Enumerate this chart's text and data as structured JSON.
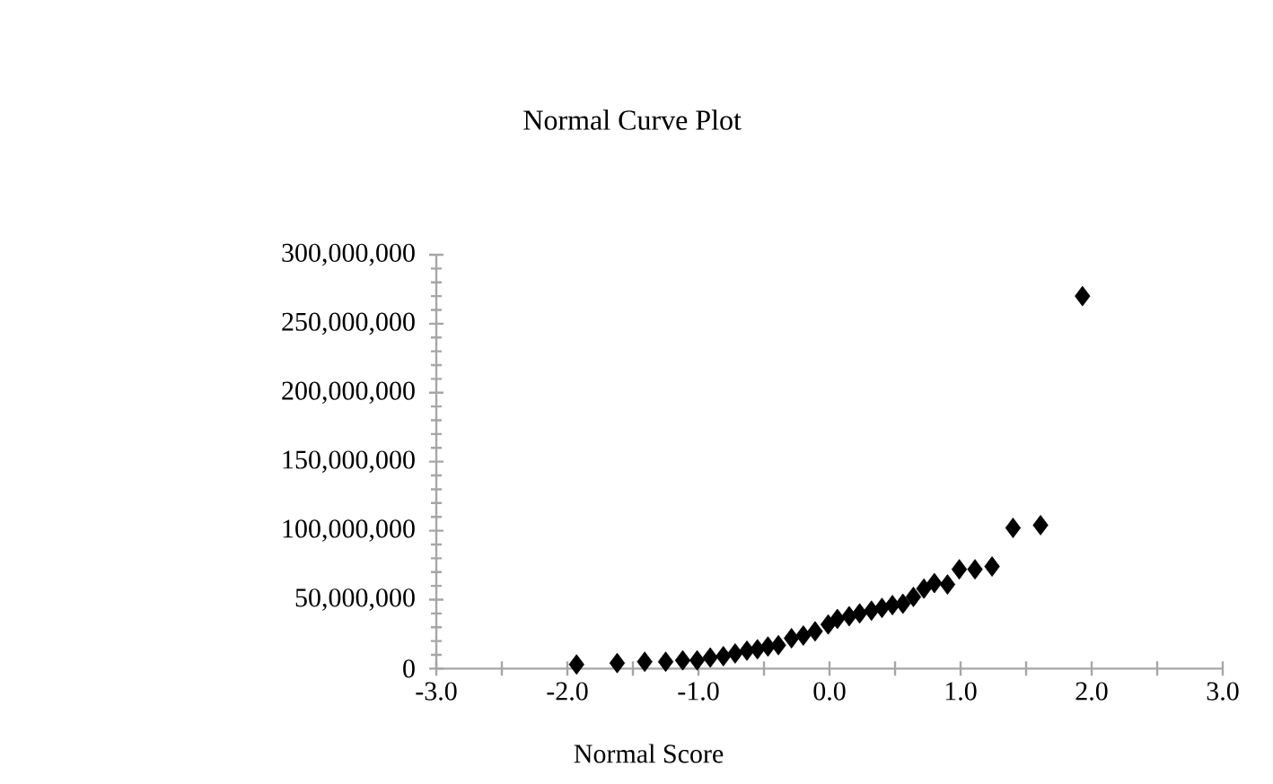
{
  "chart_data": {
    "type": "scatter",
    "title": "Normal Curve Plot",
    "xlabel": "Normal Score",
    "marker": "diamond",
    "grid": false,
    "series": [
      {
        "color": "#000000",
        "x": [
          -1.93,
          -1.62,
          -1.41,
          -1.25,
          -1.12,
          -1.01,
          -0.91,
          -0.81,
          -0.72,
          -0.63,
          -0.55,
          -0.47,
          -0.39,
          -0.29,
          -0.2,
          -0.11,
          -0.01,
          0.06,
          0.15,
          0.23,
          0.32,
          0.4,
          0.48,
          0.56,
          0.64,
          0.72,
          0.8,
          0.9,
          0.99,
          1.11,
          1.24,
          1.4,
          1.61,
          1.93
        ],
        "values": [
          3000000,
          4000000,
          5000000,
          5000000,
          6000000,
          6000000,
          8000000,
          9000000,
          11000000,
          13000000,
          14000000,
          16000000,
          17000000,
          22000000,
          24000000,
          27000000,
          32000000,
          36000000,
          38000000,
          40000000,
          42000000,
          44000000,
          46000000,
          47000000,
          52000000,
          58000000,
          62000000,
          61000000,
          72000000,
          72000000,
          74000000,
          102000000,
          104000000,
          270000000
        ]
      }
    ],
    "xlim": [
      -3,
      3
    ],
    "xticks": [
      {
        "value": -3,
        "label": "-3.0"
      },
      {
        "value": -2.5,
        "label": null
      },
      {
        "value": -2,
        "label": "-2.0"
      },
      {
        "value": -1.5,
        "label": null
      },
      {
        "value": -1,
        "label": "-1.0"
      },
      {
        "value": -0.5,
        "label": null
      },
      {
        "value": 0,
        "label": "0.0"
      },
      {
        "value": 0.5,
        "label": null
      },
      {
        "value": 1,
        "label": "1.0"
      },
      {
        "value": 1.5,
        "label": null
      },
      {
        "value": 2,
        "label": "2.0"
      },
      {
        "value": 2.5,
        "label": null
      },
      {
        "value": 3,
        "label": "3.0"
      }
    ],
    "ylim": [
      0,
      300000000
    ],
    "yticks": [
      0,
      {
        "value": 50000000,
        "label": "50,000,000"
      },
      {
        "value": 100000000,
        "label": "100,000,000"
      },
      {
        "value": 150000000,
        "label": "150,000,000"
      },
      {
        "value": 200000000,
        "label": "200,000,000"
      },
      {
        "value": 250000000,
        "label": "250,000,000"
      },
      {
        "value": 300000000,
        "label": "300,000,000"
      }
    ]
  }
}
